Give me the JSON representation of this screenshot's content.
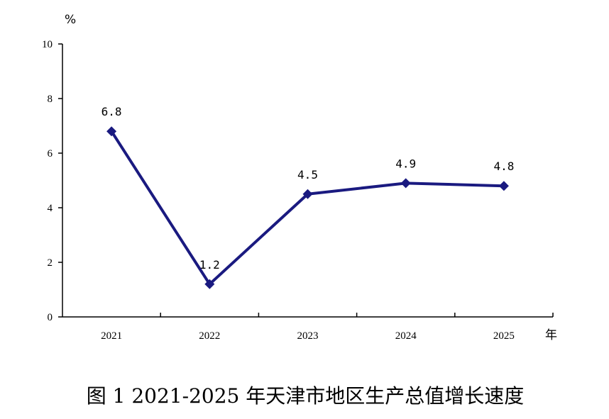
{
  "chart_data": {
    "type": "line",
    "categories": [
      "2021",
      "2022",
      "2023",
      "2024",
      "2025"
    ],
    "series": [
      {
        "values": [
          6.8,
          1.2,
          4.5,
          4.9,
          4.8
        ],
        "labels": [
          "6.8",
          "1.2",
          "4.5",
          "4.9",
          "4.8"
        ]
      }
    ],
    "yticks": [
      "0",
      "2",
      "4",
      "6",
      "8",
      "10"
    ],
    "ylim": [
      0,
      10
    ],
    "ylabel": "%",
    "xlabel": "年",
    "title": "图 1 2021-2025 年天津市地区生产总值增长速度",
    "grid": false,
    "line_color": "#1a1a80",
    "marker": "diamond"
  }
}
